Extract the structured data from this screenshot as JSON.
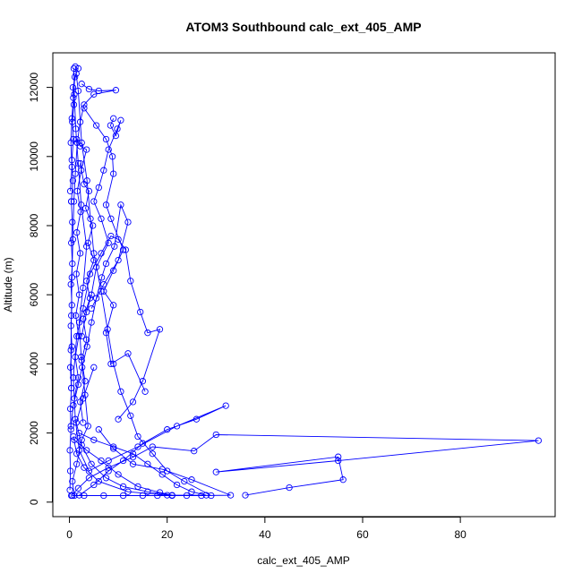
{
  "chart_data": {
    "type": "line",
    "title": "ATOM3 Southbound calc_ext_405_AMP",
    "xlabel": "calc_ext_405_AMP",
    "ylabel": "Altitude (m)",
    "xlim": [
      -3.4,
      99.4
    ],
    "ylim": [
      -420,
      13000
    ],
    "x_ticks": [
      0,
      20,
      40,
      60,
      80
    ],
    "y_ticks": [
      0,
      2000,
      4000,
      6000,
      8000,
      10000,
      12000
    ],
    "x_tick_labels": [
      "0",
      "20",
      "40",
      "60",
      "80"
    ],
    "y_tick_labels": [
      "0",
      "2000",
      "4000",
      "6000",
      "8000",
      "10000",
      "12000"
    ],
    "marker": "open-circle",
    "grid": false,
    "legend": "none",
    "color": "#0000ff",
    "series": [
      {
        "points": [
          [
            1.0,
            190
          ],
          [
            0.6,
            600
          ],
          [
            1.5,
            1100
          ],
          [
            2.5,
            1800
          ],
          [
            3.8,
            2200
          ],
          [
            3.2,
            3100
          ],
          [
            2.4,
            4200
          ],
          [
            2.0,
            5200
          ],
          [
            2.8,
            6200
          ],
          [
            3.5,
            7400
          ],
          [
            2.4,
            8600
          ],
          [
            1.8,
            9800
          ],
          [
            1.3,
            10800
          ],
          [
            1.0,
            11800
          ],
          [
            0.9,
            12550
          ]
        ]
      },
      {
        "points": [
          [
            1.2,
            12600
          ],
          [
            1.8,
            11900
          ],
          [
            2.5,
            10400
          ],
          [
            3.6,
            9300
          ],
          [
            4.3,
            8200
          ],
          [
            5.0,
            7200
          ],
          [
            6.5,
            6100
          ],
          [
            7.8,
            5000
          ],
          [
            9.0,
            4000
          ],
          [
            10.5,
            3200
          ],
          [
            12.5,
            2500
          ],
          [
            14.0,
            1900
          ],
          [
            17.0,
            1400
          ],
          [
            20.0,
            900
          ],
          [
            23.5,
            600
          ],
          [
            29.0,
            190
          ]
        ]
      },
      {
        "points": [
          [
            0.4,
            190
          ],
          [
            1.8,
            400
          ],
          [
            4.0,
            700
          ],
          [
            8.0,
            1000
          ],
          [
            13.0,
            1300
          ],
          [
            17.0,
            1600
          ],
          [
            25.5,
            1480
          ],
          [
            30.0,
            1950
          ],
          [
            96.0,
            1780
          ],
          [
            55.0,
            1200
          ],
          [
            30.0,
            870
          ],
          [
            55.0,
            1310
          ],
          [
            56.0,
            650
          ],
          [
            45.0,
            420
          ],
          [
            36.0,
            200
          ]
        ]
      },
      {
        "points": [
          [
            2.0,
            200
          ],
          [
            5.0,
            500
          ],
          [
            8.0,
            900
          ],
          [
            11.0,
            1200
          ],
          [
            15.0,
            1700
          ],
          [
            20.0,
            2100
          ],
          [
            26.0,
            2400
          ],
          [
            32.0,
            2790
          ],
          [
            22.0,
            2200
          ],
          [
            14.0,
            1600
          ],
          [
            8.0,
            1200
          ],
          [
            4.0,
            900
          ],
          [
            2.0,
            1500
          ],
          [
            1.2,
            2400
          ],
          [
            0.8,
            3600
          ]
        ]
      },
      {
        "points": [
          [
            0.8,
            3600
          ],
          [
            1.5,
            4800
          ],
          [
            2.8,
            5600
          ],
          [
            4.2,
            6600
          ],
          [
            6.5,
            7200
          ],
          [
            8.5,
            7700
          ],
          [
            10.0,
            7600
          ],
          [
            11.5,
            7300
          ],
          [
            12.5,
            6400
          ],
          [
            14.5,
            5500
          ],
          [
            16.0,
            4900
          ],
          [
            18.5,
            5000
          ],
          [
            15.0,
            3500
          ],
          [
            13.0,
            2900
          ],
          [
            10.0,
            2400
          ]
        ]
      },
      {
        "points": [
          [
            3.0,
            11400
          ],
          [
            5.5,
            10900
          ],
          [
            7.5,
            10500
          ],
          [
            8.8,
            10000
          ],
          [
            9.0,
            9500
          ],
          [
            7.5,
            8600
          ],
          [
            8.5,
            8200
          ],
          [
            11.0,
            7300
          ],
          [
            9.0,
            6700
          ],
          [
            7.0,
            6100
          ],
          [
            9.0,
            5700
          ],
          [
            7.5,
            4900
          ],
          [
            8.5,
            4000
          ],
          [
            12.0,
            4300
          ],
          [
            15.5,
            3200
          ]
        ]
      },
      {
        "points": [
          [
            9.0,
            11100
          ],
          [
            8.4,
            10900
          ],
          [
            9.5,
            10600
          ],
          [
            10.5,
            11050
          ],
          [
            9.8,
            10800
          ],
          [
            8.0,
            10200
          ],
          [
            7.0,
            9600
          ],
          [
            6.0,
            9100
          ],
          [
            5.0,
            8700
          ],
          [
            6.5,
            8200
          ],
          [
            8.0,
            7500
          ],
          [
            5.5,
            6800
          ],
          [
            4.5,
            6000
          ],
          [
            3.5,
            5500
          ],
          [
            2.5,
            4800
          ]
        ]
      },
      {
        "points": [
          [
            2.5,
            12100
          ],
          [
            4.0,
            11950
          ],
          [
            6.0,
            11900
          ],
          [
            9.5,
            11920
          ],
          [
            5.0,
            11800
          ],
          [
            3.0,
            11500
          ],
          [
            2.2,
            11000
          ],
          [
            1.6,
            10400
          ],
          [
            1.2,
            9500
          ],
          [
            0.9,
            8700
          ],
          [
            0.7,
            7600
          ],
          [
            0.5,
            6500
          ],
          [
            0.4,
            5400
          ],
          [
            0.3,
            4400
          ],
          [
            0.4,
            3300
          ]
        ]
      },
      {
        "points": [
          [
            0.6,
            190
          ],
          [
            3.0,
            190
          ],
          [
            7.0,
            190
          ],
          [
            11.0,
            190
          ],
          [
            15.0,
            190
          ],
          [
            18.0,
            190
          ],
          [
            21.0,
            190
          ],
          [
            24.0,
            190
          ],
          [
            27.0,
            190
          ],
          [
            33.0,
            200
          ],
          [
            25.0,
            650
          ],
          [
            19.0,
            950
          ],
          [
            13.0,
            1100
          ],
          [
            9.0,
            1550
          ],
          [
            6.0,
            2100
          ]
        ]
      },
      {
        "points": [
          [
            1.0,
            1800
          ],
          [
            3.5,
            1500
          ],
          [
            6.5,
            1200
          ],
          [
            10.0,
            800
          ],
          [
            14.0,
            450
          ],
          [
            18.5,
            280
          ],
          [
            21.0,
            200
          ],
          [
            16.0,
            300
          ],
          [
            11.0,
            450
          ],
          [
            7.5,
            700
          ],
          [
            4.5,
            1100
          ],
          [
            2.5,
            1650
          ],
          [
            1.4,
            2300
          ],
          [
            2.8,
            3000
          ],
          [
            5.0,
            3900
          ]
        ]
      },
      {
        "points": [
          [
            0.3,
            2200
          ],
          [
            0.8,
            2800
          ],
          [
            1.8,
            3400
          ],
          [
            2.6,
            3900
          ],
          [
            3.6,
            4500
          ],
          [
            4.5,
            5200
          ],
          [
            5.5,
            5900
          ],
          [
            6.6,
            6500
          ],
          [
            7.5,
            6900
          ],
          [
            9.2,
            7400
          ],
          [
            10.5,
            8600
          ],
          [
            12.0,
            8100
          ],
          [
            10.0,
            7000
          ],
          [
            7.0,
            6300
          ],
          [
            4.5,
            5600
          ]
        ]
      },
      {
        "points": [
          [
            2.2,
            9800
          ],
          [
            3.0,
            9200
          ],
          [
            4.0,
            9000
          ],
          [
            3.3,
            8500
          ],
          [
            4.8,
            8000
          ],
          [
            3.8,
            7500
          ],
          [
            5.0,
            7000
          ],
          [
            3.5,
            6400
          ],
          [
            4.2,
            5900
          ],
          [
            2.8,
            5300
          ],
          [
            3.5,
            4700
          ],
          [
            2.5,
            4100
          ],
          [
            3.2,
            3500
          ],
          [
            2.2,
            2900
          ],
          [
            2.8,
            2300
          ]
        ]
      },
      {
        "points": [
          [
            1.5,
            10500
          ],
          [
            2.2,
            10300
          ],
          [
            3.5,
            10200
          ],
          [
            2.4,
            9600
          ],
          [
            1.6,
            9000
          ],
          [
            2.3,
            8400
          ],
          [
            1.5,
            7800
          ],
          [
            2.2,
            7200
          ],
          [
            1.4,
            6600
          ],
          [
            2.0,
            6000
          ],
          [
            1.3,
            5400
          ],
          [
            1.9,
            4800
          ],
          [
            1.2,
            4200
          ],
          [
            1.8,
            3600
          ],
          [
            1.0,
            3000
          ]
        ]
      },
      {
        "points": [
          [
            0.1,
            350
          ],
          [
            0.2,
            900
          ],
          [
            0.1,
            1500
          ],
          [
            0.3,
            2100
          ],
          [
            0.2,
            2700
          ],
          [
            0.4,
            3300
          ],
          [
            0.2,
            3900
          ],
          [
            0.5,
            4500
          ],
          [
            0.3,
            5100
          ],
          [
            0.5,
            5700
          ],
          [
            0.3,
            6300
          ],
          [
            0.6,
            6900
          ],
          [
            0.4,
            7500
          ],
          [
            0.6,
            8100
          ],
          [
            0.4,
            8700
          ]
        ]
      },
      {
        "points": [
          [
            0.4,
            8700
          ],
          [
            0.7,
            9300
          ],
          [
            0.5,
            9900
          ],
          [
            0.8,
            10500
          ],
          [
            0.6,
            11000
          ],
          [
            0.9,
            11500
          ],
          [
            0.7,
            12000
          ],
          [
            1.4,
            12400
          ],
          [
            1.8,
            12550
          ],
          [
            1.1,
            12300
          ],
          [
            0.8,
            11700
          ],
          [
            0.5,
            11100
          ],
          [
            0.3,
            10400
          ],
          [
            0.5,
            9700
          ],
          [
            0.2,
            9000
          ]
        ]
      },
      {
        "points": [
          [
            2.0,
            2000
          ],
          [
            5.0,
            1800
          ],
          [
            9.0,
            1600
          ],
          [
            13.0,
            1400
          ],
          [
            16.0,
            1100
          ],
          [
            19.0,
            800
          ],
          [
            22.0,
            500
          ],
          [
            25.0,
            300
          ],
          [
            28.0,
            200
          ],
          [
            20.0,
            200
          ],
          [
            12.0,
            300
          ],
          [
            6.0,
            600
          ],
          [
            3.0,
            1000
          ],
          [
            1.5,
            1400
          ],
          [
            0.8,
            1900
          ]
        ]
      }
    ]
  }
}
